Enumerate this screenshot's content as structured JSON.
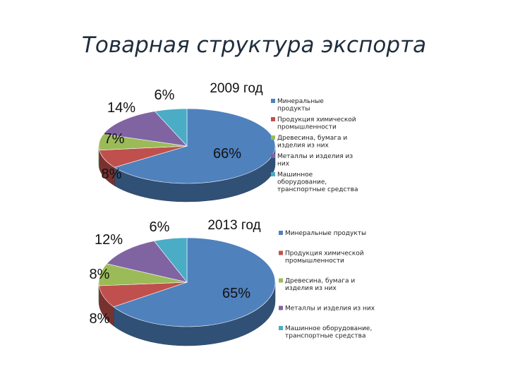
{
  "title": "Товарная структура экспорта",
  "chart_data": [
    {
      "type": "pie",
      "title": "2009 год",
      "categories": [
        "Минеральные продукты",
        "Продукция химической промышленности",
        "Древесина, бумага и изделия из них",
        "Металлы и изделия из них",
        "Машинное оборудование, транспортные средства"
      ],
      "values": [
        66,
        8,
        7,
        14,
        6
      ],
      "labels": [
        "66%",
        "8%",
        "7%",
        "14%",
        "6%"
      ],
      "legend_lines": [
        [
          "Минеральные",
          "продукты"
        ],
        [
          "Продукция химической",
          "промышленности"
        ],
        [
          "Древесина, бумага и",
          "изделия из них"
        ],
        [
          "Металлы и изделия из",
          "них"
        ],
        [
          "Машинное",
          "оборудование,",
          "транспортные средства"
        ]
      ],
      "legend": "right",
      "colors": [
        "#4f81bd",
        "#c0504d",
        "#9bbb59",
        "#8064a2",
        "#4bacc6"
      ],
      "style": "3d"
    },
    {
      "type": "pie",
      "title": "2013 год",
      "categories": [
        "Минеральные продукты",
        "Продукция химической промышленности",
        "Древесина, бумага и изделия из них",
        "Металлы и изделия из них",
        "Машинное оборудование, транспортные средства"
      ],
      "values": [
        65,
        8,
        8,
        12,
        6
      ],
      "labels": [
        "65%",
        "8%",
        "8%",
        "12%",
        "6%"
      ],
      "legend_lines": [
        [
          "Минеральные продукты"
        ],
        [
          "Продукция химической",
          "промышленности"
        ],
        [
          "Древесина, бумага и",
          "изделия из них"
        ],
        [
          "Металлы и изделия из них"
        ],
        [
          "Машинное оборудование,",
          "транспортные средства"
        ]
      ],
      "legend": "right",
      "colors": [
        "#4f81bd",
        "#c0504d",
        "#9bbb59",
        "#8064a2",
        "#4bacc6"
      ],
      "style": "3d"
    }
  ]
}
